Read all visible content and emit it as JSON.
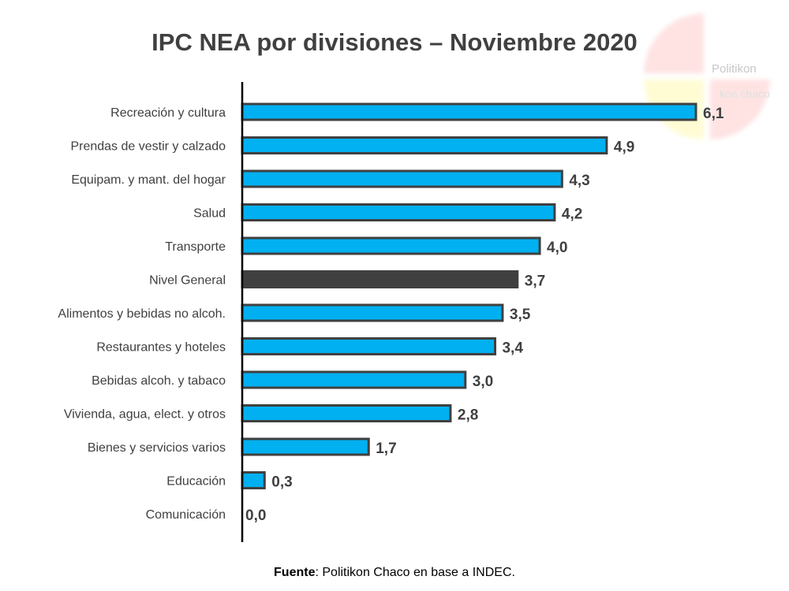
{
  "chart_data": {
    "type": "bar",
    "orientation": "horizontal",
    "title": "IPC NEA por divisiones – Noviembre 2020",
    "categories": [
      "Recreación y cultura",
      "Prendas de vestir y calzado",
      "Equipam. y mant. del hogar",
      "Salud",
      "Transporte",
      "Nivel General",
      "Alimentos y bebidas no alcoh.",
      "Restaurantes y hoteles",
      "Bebidas alcoh. y tabaco",
      "Vivienda, agua, elect. y otros",
      "Bienes y servicios varios",
      "Educación",
      "Comunicación"
    ],
    "values": [
      6.1,
      4.9,
      4.3,
      4.2,
      4.0,
      3.7,
      3.5,
      3.4,
      3.0,
      2.8,
      1.7,
      0.3,
      0.0
    ],
    "value_labels": [
      "6,1",
      "4,9",
      "4,3",
      "4,2",
      "4,0",
      "3,7",
      "3,5",
      "3,4",
      "3,0",
      "2,8",
      "1,7",
      "0,3",
      "0,0"
    ],
    "highlight_category": "Nivel General",
    "xlim": [
      0,
      6.1
    ],
    "grid": false,
    "colors": {
      "bar": "#00B0F0",
      "highlight": "#404040",
      "outline": "#404040"
    }
  },
  "source": {
    "label": "Fuente",
    "text": ": Politikon Chaco en base a INDEC."
  },
  "watermark": {
    "line1": "Politikon",
    "line2": "kon chaco"
  }
}
